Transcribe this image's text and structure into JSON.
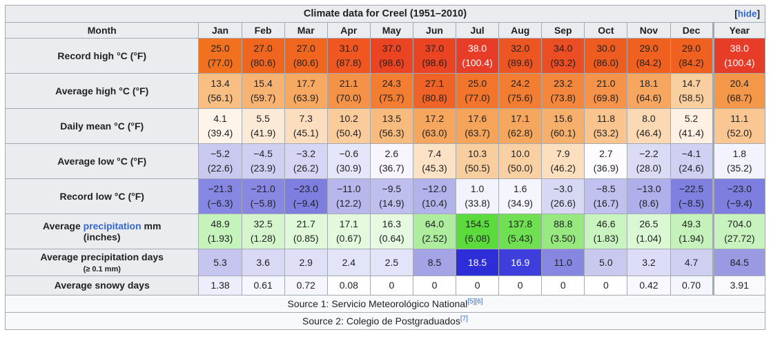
{
  "colors": {
    "link": "#3366CC",
    "header_bg": "#EAECF0",
    "border": "#A2A9B1",
    "hot_text": "#FFFFFF"
  },
  "chart_data": {
    "type": "table",
    "title": "Climate data for Creel (1951–2010)",
    "hide": {
      "open": "[",
      "label": "hide",
      "close": "]"
    },
    "columns": [
      "Month",
      "Jan",
      "Feb",
      "Mar",
      "Apr",
      "May",
      "Jun",
      "Jul",
      "Aug",
      "Sep",
      "Oct",
      "Nov",
      "Dec",
      "Year"
    ],
    "rows": [
      {
        "label": [
          [
            {
              "t": "Record high °C (°F)"
            }
          ]
        ],
        "cells": [
          {
            "v": "25.0",
            "f": "(77.0)",
            "bg": "#F2711F"
          },
          {
            "v": "27.0",
            "f": "(80.6)",
            "bg": "#F1661F"
          },
          {
            "v": "27.0",
            "f": "(80.6)",
            "bg": "#F1661F"
          },
          {
            "v": "31.0",
            "f": "(87.8)",
            "bg": "#EF5620"
          },
          {
            "v": "37.0",
            "f": "(98.6)",
            "bg": "#EA4423"
          },
          {
            "v": "37.0",
            "f": "(98.6)",
            "bg": "#EA4423"
          },
          {
            "v": "38.0",
            "f": "(100.4)",
            "bg": "#E63C28",
            "fg": "#FFFFFF"
          },
          {
            "v": "32.0",
            "f": "(89.6)",
            "bg": "#ED5622"
          },
          {
            "v": "34.0",
            "f": "(93.2)",
            "bg": "#EB4E23"
          },
          {
            "v": "30.0",
            "f": "(86.0)",
            "bg": "#EF5C20"
          },
          {
            "v": "29.0",
            "f": "(84.2)",
            "bg": "#F0611F"
          },
          {
            "v": "29.0",
            "f": "(84.2)",
            "bg": "#F0611F"
          },
          {
            "v": "38.0",
            "f": "(100.4)",
            "bg": "#E63C28",
            "fg": "#FFFFFF"
          }
        ]
      },
      {
        "label": [
          [
            {
              "t": "Average high °C (°F)"
            }
          ]
        ],
        "cells": [
          {
            "v": "13.4",
            "f": "(56.1)",
            "bg": "#F9BE81"
          },
          {
            "v": "15.4",
            "f": "(59.7)",
            "bg": "#F8B373"
          },
          {
            "v": "17.7",
            "f": "(63.9)",
            "bg": "#F7A962"
          },
          {
            "v": "21.1",
            "f": "(70.0)",
            "bg": "#F49247"
          },
          {
            "v": "24.3",
            "f": "(75.7)",
            "bg": "#F37D30"
          },
          {
            "v": "27.1",
            "f": "(80.8)",
            "bg": "#F06327"
          },
          {
            "v": "25.0",
            "f": "(77.0)",
            "bg": "#F3752B"
          },
          {
            "v": "24.2",
            "f": "(75.6)",
            "bg": "#F37E31"
          },
          {
            "v": "23.2",
            "f": "(73.8)",
            "bg": "#F4873B"
          },
          {
            "v": "21.0",
            "f": "(69.8)",
            "bg": "#F5934A"
          },
          {
            "v": "18.1",
            "f": "(64.6)",
            "bg": "#F7A660"
          },
          {
            "v": "14.7",
            "f": "(58.5)",
            "bg": "#FACFA0"
          },
          {
            "v": "20.4",
            "f": "(68.7)",
            "bg": "#F59749"
          }
        ]
      },
      {
        "label": [
          [
            {
              "t": "Daily mean °C (°F)"
            }
          ]
        ],
        "cells": [
          {
            "v": "4.1",
            "f": "(39.4)",
            "bg": "#FEF4EA"
          },
          {
            "v": "5.5",
            "f": "(41.9)",
            "bg": "#FDEAD6"
          },
          {
            "v": "7.3",
            "f": "(45.1)",
            "bg": "#FCDEBF"
          },
          {
            "v": "10.2",
            "f": "(50.4)",
            "bg": "#FACC9C"
          },
          {
            "v": "13.5",
            "f": "(56.3)",
            "bg": "#F8BB7E"
          },
          {
            "v": "17.2",
            "f": "(63.0)",
            "bg": "#F6A65D"
          },
          {
            "v": "17.6",
            "f": "(63.7)",
            "bg": "#F6A459"
          },
          {
            "v": "17.1",
            "f": "(62.8)",
            "bg": "#F6A75E"
          },
          {
            "v": "15.6",
            "f": "(60.1)",
            "bg": "#F7AF6C"
          },
          {
            "v": "11.8",
            "f": "(53.2)",
            "bg": "#F9C48E"
          },
          {
            "v": "8.0",
            "f": "(46.4)",
            "bg": "#FBD9B4"
          },
          {
            "v": "5.2",
            "f": "(41.4)",
            "bg": "#FEF0E2"
          },
          {
            "v": "11.1",
            "f": "(52.0)",
            "bg": "#FAC793"
          }
        ]
      },
      {
        "label": [
          [
            {
              "t": "Average low °C (°F)"
            }
          ]
        ],
        "cells": [
          {
            "v": "−5.2",
            "f": "(22.6)",
            "bg": "#C9C9F0"
          },
          {
            "v": "−4.5",
            "f": "(23.9)",
            "bg": "#CFCFF2"
          },
          {
            "v": "−3.2",
            "f": "(26.2)",
            "bg": "#D6D6F4"
          },
          {
            "v": "−0.6",
            "f": "(30.9)",
            "bg": "#E6E6FA"
          },
          {
            "v": "2.6",
            "f": "(36.7)",
            "bg": "#F8F5FE"
          },
          {
            "v": "7.4",
            "f": "(45.3)",
            "bg": "#FBE2C4"
          },
          {
            "v": "10.3",
            "f": "(50.5)",
            "bg": "#F9CE9E"
          },
          {
            "v": "10.0",
            "f": "(50.0)",
            "bg": "#F9D0A2"
          },
          {
            "v": "7.9",
            "f": "(46.2)",
            "bg": "#FBDFBE"
          },
          {
            "v": "2.7",
            "f": "(36.9)",
            "bg": "#FDFBFE"
          },
          {
            "v": "−2.2",
            "f": "(28.0)",
            "bg": "#DBDBF6"
          },
          {
            "v": "−4.1",
            "f": "(24.6)",
            "bg": "#D0D0F2"
          },
          {
            "v": "1.8",
            "f": "(35.2)",
            "bg": "#F3F3FD"
          }
        ]
      },
      {
        "label": [
          [
            {
              "t": "Record low °C (°F)"
            }
          ]
        ],
        "cells": [
          {
            "v": "−21.3",
            "f": "(−6.3)",
            "bg": "#8686E3"
          },
          {
            "v": "−21.0",
            "f": "(−5.8)",
            "bg": "#8888E3"
          },
          {
            "v": "−23.0",
            "f": "(−9.4)",
            "bg": "#7E7EE1"
          },
          {
            "v": "−11.0",
            "f": "(12.2)",
            "bg": "#B7B7ED"
          },
          {
            "v": "−9.5",
            "f": "(14.9)",
            "bg": "#BFBFEF"
          },
          {
            "v": "−12.0",
            "f": "(10.4)",
            "bg": "#B3B3EC"
          },
          {
            "v": "1.0",
            "f": "(33.8)",
            "bg": "#F3F3FD"
          },
          {
            "v": "1.6",
            "f": "(34.9)",
            "bg": "#F5F5FD"
          },
          {
            "v": "−3.0",
            "f": "(26.6)",
            "bg": "#D8D8F5"
          },
          {
            "v": "−8.5",
            "f": "(16.7)",
            "bg": "#C1C1EF"
          },
          {
            "v": "−13.0",
            "f": "(8.6)",
            "bg": "#AFAFEB"
          },
          {
            "v": "−22.5",
            "f": "(−8.5)",
            "bg": "#8080E1"
          },
          {
            "v": "−23.0",
            "f": "(−9.4)",
            "bg": "#7E7EE1"
          }
        ]
      },
      {
        "label": [
          [
            {
              "t": "Average "
            },
            {
              "t": "precipitation",
              "link": true
            },
            {
              "t": " mm"
            }
          ],
          [
            {
              "t": "(inches)"
            }
          ]
        ],
        "cells": [
          {
            "v": "48.9",
            "f": "(1.93)",
            "bg": "#C6F2BB"
          },
          {
            "v": "32.5",
            "f": "(1.28)",
            "bg": "#D5F6CD"
          },
          {
            "v": "21.7",
            "f": "(0.85)",
            "bg": "#DFF9D9"
          },
          {
            "v": "17.1",
            "f": "(0.67)",
            "bg": "#E4FADF"
          },
          {
            "v": "16.3",
            "f": "(0.64)",
            "bg": "#E5FAE0"
          },
          {
            "v": "64.0",
            "f": "(2.52)",
            "bg": "#AEEC9E"
          },
          {
            "v": "154.5",
            "f": "(6.08)",
            "bg": "#5CDC3C"
          },
          {
            "v": "137.8",
            "f": "(5.43)",
            "bg": "#6FE051"
          },
          {
            "v": "88.8",
            "f": "(3.50)",
            "bg": "#96E87F"
          },
          {
            "v": "46.6",
            "f": "(1.83)",
            "bg": "#C9F3BF"
          },
          {
            "v": "26.5",
            "f": "(1.04)",
            "bg": "#DBF8D4"
          },
          {
            "v": "49.3",
            "f": "(1.94)",
            "bg": "#C5F2BA"
          },
          {
            "v": "704.0",
            "f": "(27.72)",
            "bg": "#C8F3BE"
          }
        ]
      },
      {
        "label": [
          [
            {
              "t": "Average precipitation days"
            }
          ],
          [
            {
              "t": "(≥ 0.1 mm)",
              "small": true
            }
          ]
        ],
        "cells": [
          {
            "v": "5.3",
            "bg": "#C5C5EF"
          },
          {
            "v": "3.6",
            "bg": "#D9D9F6"
          },
          {
            "v": "2.9",
            "bg": "#DFDFF8"
          },
          {
            "v": "2.4",
            "bg": "#E4E4F9"
          },
          {
            "v": "2.5",
            "bg": "#E3E3F9"
          },
          {
            "v": "8.5",
            "bg": "#A3A3E6"
          },
          {
            "v": "18.5",
            "bg": "#2E2ED9",
            "fg": "#FFFFFF"
          },
          {
            "v": "16.9",
            "bg": "#3E3EDC",
            "fg": "#FFFFFF"
          },
          {
            "v": "11.0",
            "bg": "#8787E1"
          },
          {
            "v": "5.0",
            "bg": "#C9C9F0"
          },
          {
            "v": "3.2",
            "bg": "#DDDDF7"
          },
          {
            "v": "4.7",
            "bg": "#CFCFF2"
          },
          {
            "v": "84.5",
            "bg": "#9A9AE3"
          }
        ]
      },
      {
        "label": [
          [
            {
              "t": "Average snowy days"
            }
          ]
        ],
        "cells": [
          {
            "v": "1.38",
            "bg": "#EDEDFB"
          },
          {
            "v": "0.61",
            "bg": "#F6F6FD"
          },
          {
            "v": "0.72",
            "bg": "#F5F5FD"
          },
          {
            "v": "0.08",
            "bg": "#FEFEFF"
          },
          {
            "v": "0",
            "bg": "#FFFFFF"
          },
          {
            "v": "0",
            "bg": "#FFFFFF"
          },
          {
            "v": "0",
            "bg": "#FFFFFF"
          },
          {
            "v": "0",
            "bg": "#FFFFFF"
          },
          {
            "v": "0",
            "bg": "#FFFFFF"
          },
          {
            "v": "0",
            "bg": "#FFFFFF"
          },
          {
            "v": "0.42",
            "bg": "#F8F8FE"
          },
          {
            "v": "0.70",
            "bg": "#F5F5FD"
          },
          {
            "v": "3.91",
            "bg": "#FAFAFE"
          }
        ]
      }
    ],
    "footers": [
      [
        {
          "t": "Source 1: Servicio Meteorológico National"
        },
        {
          "t": "[5]",
          "sup": true
        },
        {
          "t": "[6]",
          "sup": true
        }
      ],
      [
        {
          "t": "Source 2: Colegio de Postgraduados"
        },
        {
          "t": "[7]",
          "sup": true
        }
      ]
    ]
  }
}
